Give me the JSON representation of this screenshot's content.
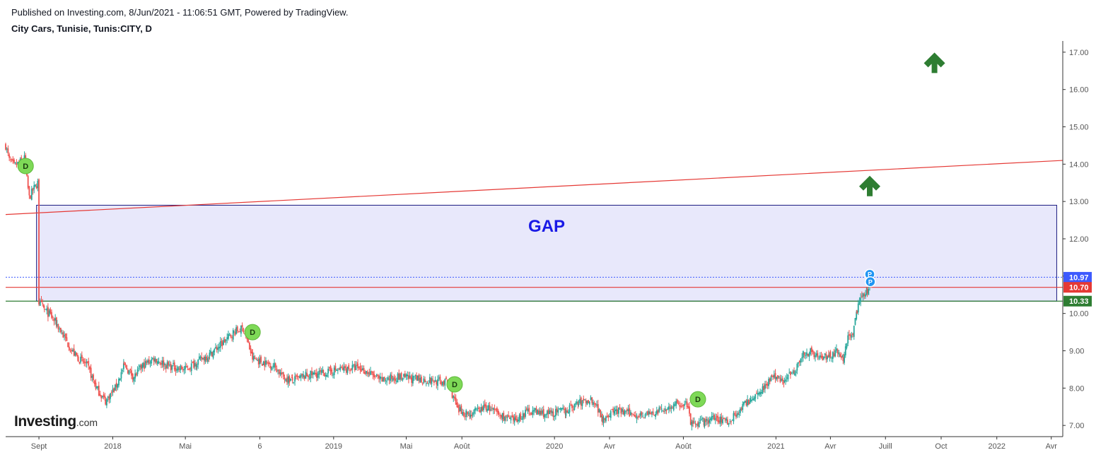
{
  "header": {
    "published": "Published on Investing.com, 8/Jun/2021 - 11:06:51 GMT, Powered by TradingView.",
    "symbol": "City Cars, Tunisie, Tunis:CITY, D"
  },
  "logo": {
    "main": "Investing",
    "suffix": ".com"
  },
  "colors": {
    "up": "#26a69a",
    "down": "#ef5350",
    "axis": "#555555",
    "gap_fill": "#e8e8fb",
    "gap_border": "#1a1a80",
    "trendline": "#e53935",
    "support": "#2e7d32",
    "arrow": "#2e7d32",
    "marker": "#7ed957",
    "p_marker": "#2196f3"
  },
  "chart_data": {
    "type": "candlestick",
    "interval": "D",
    "y_axis": {
      "side": "right",
      "range": [
        6.7,
        17.3
      ],
      "ticks": [
        "7.00",
        "8.00",
        "9.00",
        "10.00",
        "11.00",
        "12.00",
        "13.00",
        "14.00",
        "15.00",
        "16.00",
        "17.00"
      ]
    },
    "x_axis": {
      "range": [
        "2017-07-08",
        "2022-04-20"
      ],
      "ticks": [
        {
          "label": "Sept",
          "date": "2017-09-01"
        },
        {
          "label": "2018",
          "date": "2018-01-01"
        },
        {
          "label": "Mai",
          "date": "2018-05-01"
        },
        {
          "label": "6",
          "date": "2018-09-01"
        },
        {
          "label": "2019",
          "date": "2019-01-01"
        },
        {
          "label": "Mai",
          "date": "2019-05-01"
        },
        {
          "label": "Août",
          "date": "2019-08-01"
        },
        {
          "label": "2020",
          "date": "2020-01-01"
        },
        {
          "label": "Avr",
          "date": "2020-04-01"
        },
        {
          "label": "Août",
          "date": "2020-08-01"
        },
        {
          "label": "2021",
          "date": "2021-01-01"
        },
        {
          "label": "Avr",
          "date": "2021-04-01"
        },
        {
          "label": "Juill",
          "date": "2021-07-01"
        },
        {
          "label": "Oct",
          "date": "2021-10-01"
        },
        {
          "label": "2022",
          "date": "2022-01-01"
        },
        {
          "label": "Avr",
          "date": "2022-04-01"
        }
      ]
    },
    "price_path": [
      [
        "2017-07-08",
        14.5
      ],
      [
        "2017-07-14",
        14.1
      ],
      [
        "2017-07-22",
        13.95
      ],
      [
        "2017-08-01",
        14.05
      ],
      [
        "2017-08-08",
        14.15
      ],
      [
        "2017-08-12",
        13.6
      ],
      [
        "2017-08-16",
        13.1
      ],
      [
        "2017-08-22",
        13.3
      ],
      [
        "2017-08-30",
        13.5
      ],
      [
        "2017-09-01",
        10.3
      ],
      [
        "2017-09-10",
        10.1
      ],
      [
        "2017-09-20",
        9.95
      ],
      [
        "2017-10-01",
        9.7
      ],
      [
        "2017-10-15",
        9.3
      ],
      [
        "2017-10-25",
        9.0
      ],
      [
        "2017-11-05",
        8.8
      ],
      [
        "2017-11-20",
        8.6
      ],
      [
        "2017-12-05",
        8.0
      ],
      [
        "2017-12-20",
        7.65
      ],
      [
        "2018-01-05",
        8.0
      ],
      [
        "2018-01-20",
        8.6
      ],
      [
        "2018-02-05",
        8.3
      ],
      [
        "2018-02-20",
        8.6
      ],
      [
        "2018-03-10",
        8.8
      ],
      [
        "2018-04-01",
        8.6
      ],
      [
        "2018-05-01",
        8.5
      ],
      [
        "2018-05-20",
        8.7
      ],
      [
        "2018-06-10",
        8.9
      ],
      [
        "2018-07-01",
        9.2
      ],
      [
        "2018-07-20",
        9.5
      ],
      [
        "2018-08-05",
        9.6
      ],
      [
        "2018-08-20",
        8.8
      ],
      [
        "2018-09-05",
        8.7
      ],
      [
        "2018-09-25",
        8.6
      ],
      [
        "2018-10-10",
        8.3
      ],
      [
        "2018-10-25",
        8.2
      ],
      [
        "2018-11-20",
        8.35
      ],
      [
        "2018-12-15",
        8.4
      ],
      [
        "2019-01-10",
        8.5
      ],
      [
        "2019-02-10",
        8.55
      ],
      [
        "2019-03-01",
        8.4
      ],
      [
        "2019-03-20",
        8.2
      ],
      [
        "2019-04-15",
        8.3
      ],
      [
        "2019-05-10",
        8.25
      ],
      [
        "2019-06-10",
        8.2
      ],
      [
        "2019-07-10",
        8.15
      ],
      [
        "2019-07-25",
        7.4
      ],
      [
        "2019-08-15",
        7.3
      ],
      [
        "2019-09-10",
        7.5
      ],
      [
        "2019-10-01",
        7.3
      ],
      [
        "2019-10-25",
        7.1
      ],
      [
        "2019-11-20",
        7.4
      ],
      [
        "2019-12-20",
        7.3
      ],
      [
        "2020-01-20",
        7.4
      ],
      [
        "2020-02-10",
        7.6
      ],
      [
        "2020-03-05",
        7.7
      ],
      [
        "2020-03-20",
        7.2
      ],
      [
        "2020-04-10",
        7.4
      ],
      [
        "2020-05-10",
        7.3
      ],
      [
        "2020-06-10",
        7.3
      ],
      [
        "2020-07-10",
        7.5
      ],
      [
        "2020-08-05",
        7.6
      ],
      [
        "2020-08-15",
        7.0
      ],
      [
        "2020-09-05",
        7.1
      ],
      [
        "2020-09-25",
        7.2
      ],
      [
        "2020-10-15",
        7.1
      ],
      [
        "2020-11-01",
        7.4
      ],
      [
        "2020-11-20",
        7.7
      ],
      [
        "2020-12-10",
        8.0
      ],
      [
        "2020-12-25",
        8.3
      ],
      [
        "2021-01-15",
        8.2
      ],
      [
        "2021-02-01",
        8.5
      ],
      [
        "2021-02-15",
        8.9
      ],
      [
        "2021-03-01",
        9.0
      ],
      [
        "2021-03-15",
        8.8
      ],
      [
        "2021-04-01",
        8.9
      ],
      [
        "2021-04-15",
        9.0
      ],
      [
        "2021-04-22",
        8.7
      ],
      [
        "2021-04-28",
        9.3
      ],
      [
        "2021-05-08",
        9.5
      ],
      [
        "2021-05-15",
        10.1
      ],
      [
        "2021-05-25",
        10.5
      ],
      [
        "2021-06-01",
        10.6
      ],
      [
        "2021-06-08",
        10.7
      ]
    ],
    "horizontal_levels": [
      {
        "value": 10.97,
        "label": "10.97",
        "color": "#3d5afe",
        "style": "dotted"
      },
      {
        "value": 10.7,
        "label": "10.70",
        "color": "#e53935",
        "style": "solid"
      },
      {
        "value": 10.33,
        "label": "10.33",
        "color": "#2e7d32",
        "style": "solid"
      }
    ],
    "gap_zone": {
      "label": "GAP",
      "start": "2017-08-28",
      "end": "2022-04-10",
      "top": 12.9,
      "bottom": 10.33
    },
    "trendline": {
      "start": [
        "2017-07-08",
        12.65
      ],
      "end": [
        "2022-04-20",
        14.1
      ]
    },
    "dividend_markers": [
      {
        "label": "D",
        "date": "2017-08-10",
        "value": 13.95
      },
      {
        "label": "D",
        "date": "2018-08-20",
        "value": 9.5
      },
      {
        "label": "D",
        "date": "2019-07-20",
        "value": 8.1
      },
      {
        "label": "D",
        "date": "2020-08-25",
        "value": 7.7
      }
    ],
    "p_markers": [
      {
        "label": "P",
        "date": "2021-06-05",
        "value": 11.05
      },
      {
        "label": "P",
        "date": "2021-06-06",
        "value": 10.85
      }
    ],
    "arrows": [
      {
        "date": "2021-06-05",
        "value": 13.5,
        "direction": "up"
      },
      {
        "date": "2021-09-20",
        "value": 16.8,
        "direction": "up"
      }
    ]
  }
}
